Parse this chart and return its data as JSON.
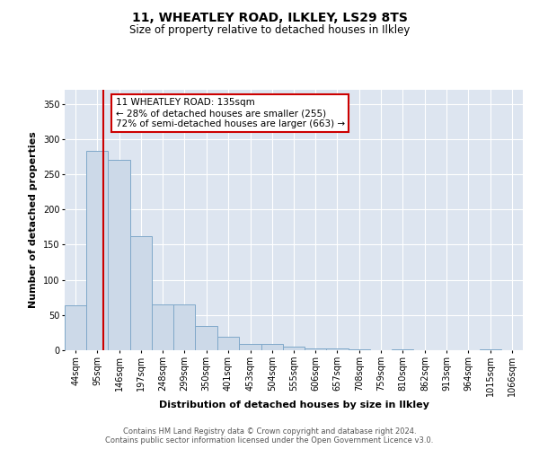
{
  "title1": "11, WHEATLEY ROAD, ILKLEY, LS29 8TS",
  "title2": "Size of property relative to detached houses in Ilkley",
  "xlabel": "Distribution of detached houses by size in Ilkley",
  "ylabel": "Number of detached properties",
  "footnote": "Contains HM Land Registry data © Crown copyright and database right 2024.\nContains public sector information licensed under the Open Government Licence v3.0.",
  "bar_labels": [
    "44sqm",
    "95sqm",
    "146sqm",
    "197sqm",
    "248sqm",
    "299sqm",
    "350sqm",
    "401sqm",
    "453sqm",
    "504sqm",
    "555sqm",
    "606sqm",
    "657sqm",
    "708sqm",
    "759sqm",
    "810sqm",
    "862sqm",
    "913sqm",
    "964sqm",
    "1015sqm",
    "1066sqm"
  ],
  "bar_values": [
    64,
    283,
    271,
    162,
    65,
    65,
    35,
    19,
    9,
    9,
    5,
    2,
    2,
    1,
    0,
    1,
    0,
    0,
    0,
    1,
    0
  ],
  "bar_color": "#ccd9e8",
  "bar_edge_color": "#7fa8c9",
  "property_line_x": 135,
  "annotation_box_color": "#cc0000",
  "ylim": [
    0,
    370
  ],
  "yticks": [
    0,
    50,
    100,
    150,
    200,
    250,
    300,
    350
  ],
  "bg_color": "#dde5f0",
  "grid_color": "#ffffff",
  "title_fontsize": 10,
  "subtitle_fontsize": 8.5,
  "axis_label_fontsize": 8,
  "tick_fontsize": 7,
  "annot_fontsize": 7.5
}
